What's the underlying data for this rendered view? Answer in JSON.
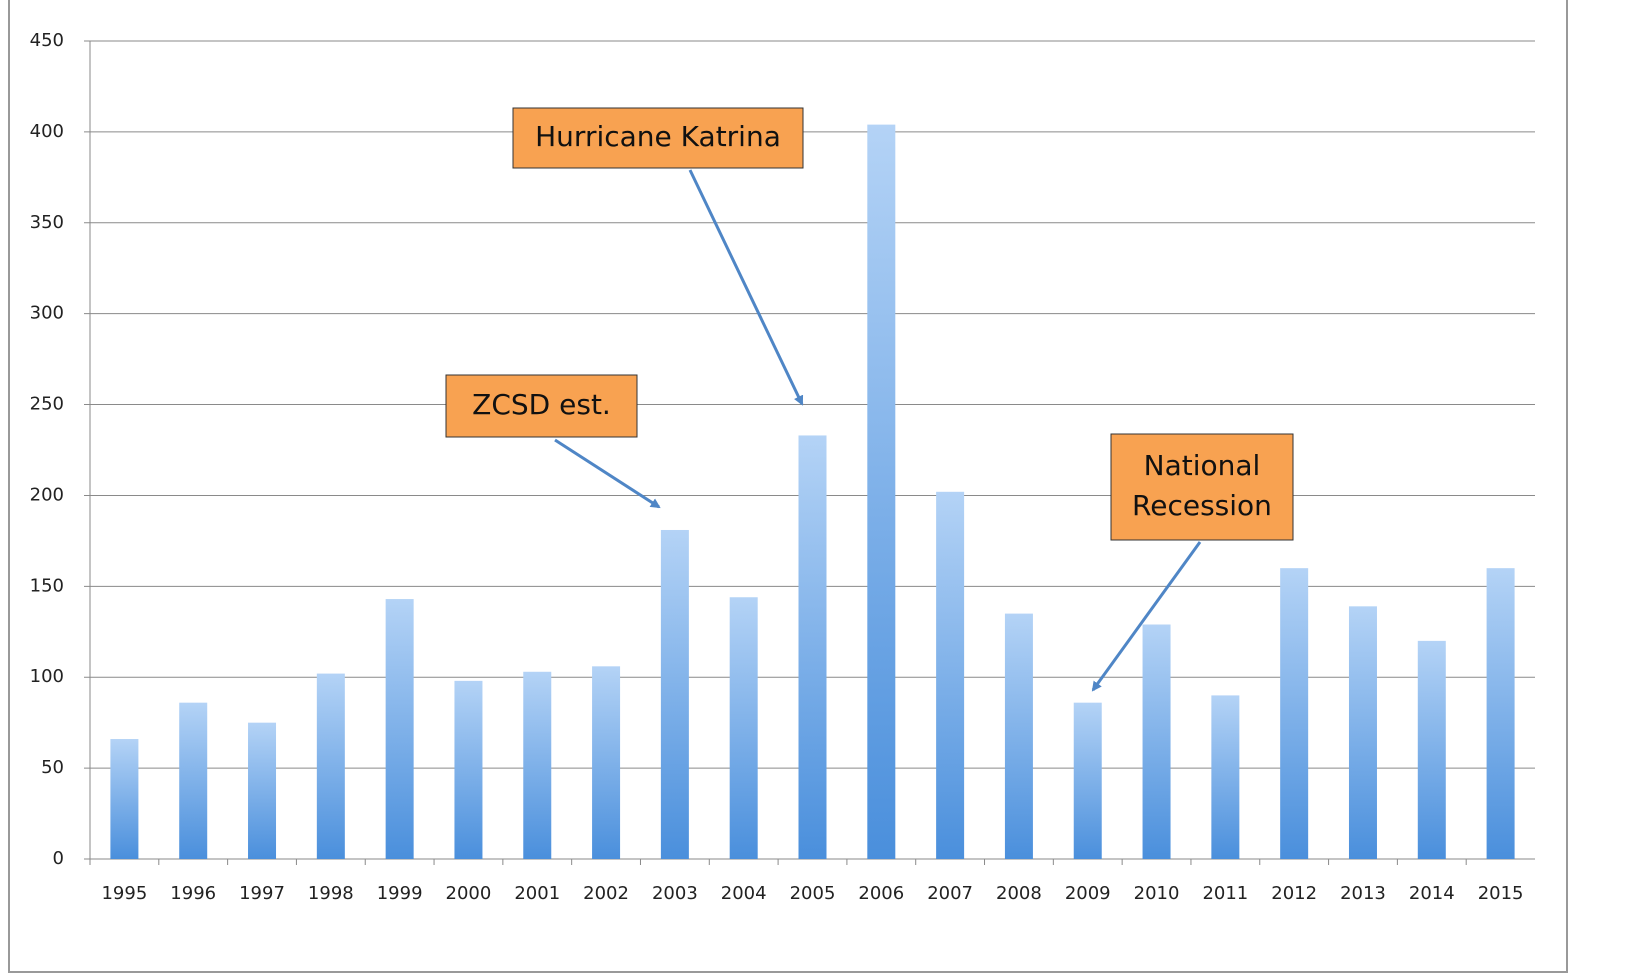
{
  "chart_data": {
    "type": "bar",
    "categories": [
      "1995",
      "1996",
      "1997",
      "1998",
      "1999",
      "2000",
      "2001",
      "2002",
      "2003",
      "2004",
      "2005",
      "2006",
      "2007",
      "2008",
      "2009",
      "2010",
      "2011",
      "2012",
      "2013",
      "2014",
      "2015"
    ],
    "values": [
      66,
      86,
      75,
      102,
      143,
      98,
      103,
      106,
      181,
      144,
      233,
      404,
      202,
      135,
      86,
      129,
      90,
      160,
      139,
      120,
      160
    ],
    "color": "#5a9be0",
    "ylim": [
      0,
      450
    ],
    "yticks": [
      0,
      50,
      100,
      150,
      200,
      250,
      300,
      350,
      400,
      450
    ],
    "grid": true,
    "annotations": [
      {
        "lines": [
          "Hurricane Katrina"
        ]
      },
      {
        "lines": [
          "ZCSD est."
        ]
      },
      {
        "lines": [
          "National",
          "Recession"
        ]
      }
    ]
  }
}
